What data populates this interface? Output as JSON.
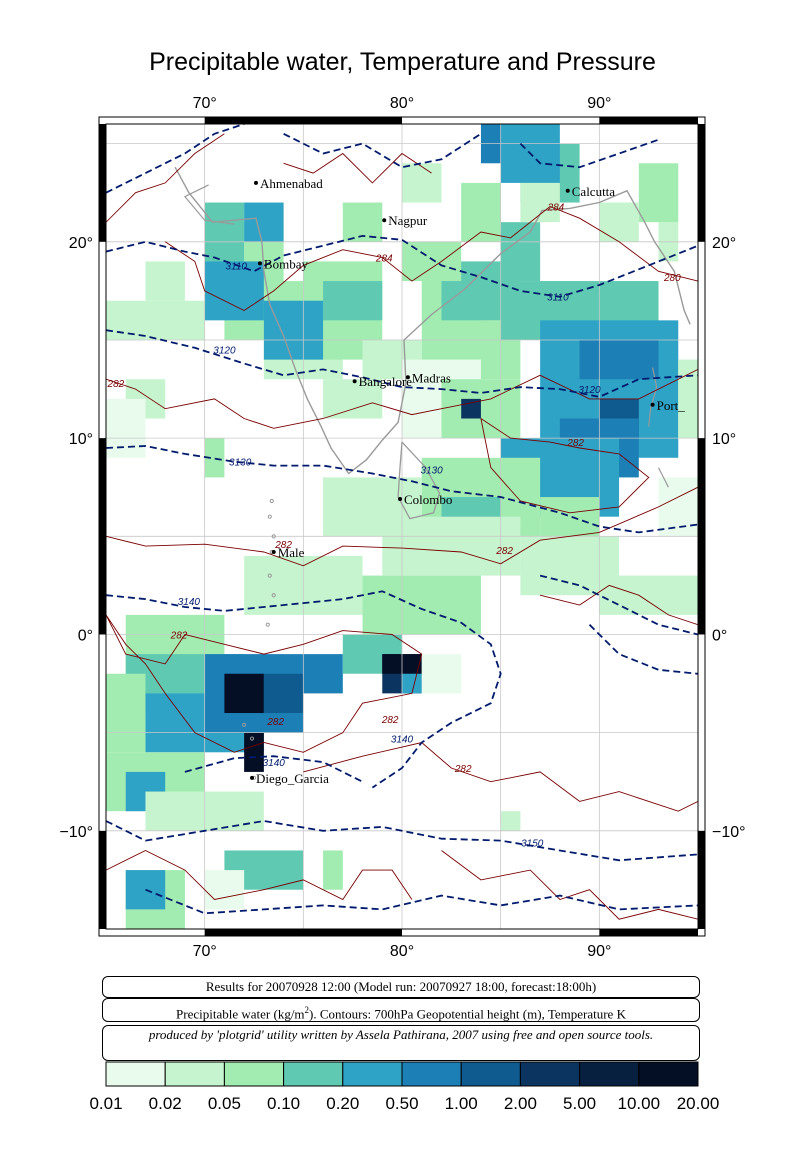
{
  "title": "Precipitable water, Temperature and Pressure",
  "map": {
    "lon_range": [
      65,
      95
    ],
    "lat_range": [
      -15,
      26
    ],
    "lon_ticks": [
      "70°",
      "80°",
      "90°"
    ],
    "lat_ticks": [
      "20°",
      "10°",
      "0°",
      "−10°"
    ],
    "grid": true,
    "colors": {
      "cell_1": "#e9fbec",
      "cell_2": "#c6f4ce",
      "cell_3": "#a3ecb1",
      "cell_4": "#5fc9b2",
      "cell_5": "#2fa3c6",
      "cell_6": "#1c7fb6",
      "cell_7": "#0f5a8e",
      "cell_8": "#0b3560",
      "cell_9": "#07203f",
      "cell_10": "#040e24",
      "pressure_contour": "#001a6e",
      "temperature_contour": "#7a0000",
      "coastline": "#9a9a9a"
    }
  },
  "cities": [
    {
      "name": "Ahmenabad",
      "lon": 72.6,
      "lat": 23.0
    },
    {
      "name": "Nagpur",
      "lon": 79.1,
      "lat": 21.1
    },
    {
      "name": "Calcutta",
      "lon": 88.4,
      "lat": 22.6
    },
    {
      "name": "Bombay",
      "lon": 72.8,
      "lat": 18.9
    },
    {
      "name": "Bangalore",
      "lon": 77.6,
      "lat": 12.9
    },
    {
      "name": "Madras",
      "lon": 80.3,
      "lat": 13.1
    },
    {
      "name": "Port_Blair",
      "label": "Port_",
      "lon": 92.7,
      "lat": 11.7
    },
    {
      "name": "Colombo",
      "lon": 79.9,
      "lat": 6.9
    },
    {
      "name": "Male",
      "lon": 73.5,
      "lat": 4.2
    },
    {
      "name": "Diego_Garcia",
      "lon": 72.4,
      "lat": -7.3
    }
  ],
  "contour_labels": [
    {
      "text": "3110",
      "lon": 71.6,
      "lat": 18.6,
      "kind": "pressure"
    },
    {
      "text": "3120",
      "lon": 71.0,
      "lat": 14.3,
      "kind": "pressure"
    },
    {
      "text": "3130",
      "lon": 71.8,
      "lat": 8.6,
      "kind": "pressure"
    },
    {
      "text": "3140",
      "lon": 69.2,
      "lat": 1.5,
      "kind": "pressure"
    },
    {
      "text": "3140",
      "lon": 73.5,
      "lat": -6.7,
      "kind": "pressure"
    },
    {
      "text": "3140",
      "lon": 80.0,
      "lat": -5.5,
      "kind": "pressure"
    },
    {
      "text": "3150",
      "lon": 86.6,
      "lat": -10.8,
      "kind": "pressure"
    },
    {
      "text": "3110",
      "lon": 87.9,
      "lat": 17.0,
      "kind": "pressure"
    },
    {
      "text": "3120",
      "lon": 89.5,
      "lat": 12.3,
      "kind": "pressure"
    },
    {
      "text": "3130",
      "lon": 81.5,
      "lat": 8.2,
      "kind": "pressure"
    },
    {
      "text": "284",
      "lon": 79.1,
      "lat": 19.0,
      "kind": "temperature"
    },
    {
      "text": "284",
      "lon": 87.8,
      "lat": 21.6,
      "kind": "temperature"
    },
    {
      "text": "280",
      "lon": 93.7,
      "lat": 18.0,
      "kind": "temperature"
    },
    {
      "text": "282",
      "lon": 65.5,
      "lat": 12.6,
      "kind": "temperature"
    },
    {
      "text": "282",
      "lon": 88.8,
      "lat": 9.6,
      "kind": "temperature"
    },
    {
      "text": "282",
      "lon": 85.2,
      "lat": 4.1,
      "kind": "temperature"
    },
    {
      "text": "282",
      "lon": 68.7,
      "lat": -0.2,
      "kind": "temperature"
    },
    {
      "text": "282",
      "lon": 74.0,
      "lat": 4.4,
      "kind": "temperature"
    },
    {
      "text": "282",
      "lon": 73.6,
      "lat": -4.6,
      "kind": "temperature"
    },
    {
      "text": "282",
      "lon": 79.4,
      "lat": -4.5,
      "kind": "temperature"
    },
    {
      "text": "282",
      "lon": 83.1,
      "lat": -7.0,
      "kind": "temperature"
    }
  ],
  "info": {
    "results": "Results for 20070928 12:00 (Model run: 20070927 18:00, forecast:18:00h)",
    "description_prefix": "Precipitable water (kg/m",
    "description_sup": "2",
    "description_suffix": ").  Contours: 700hPa Geopotential height (m), Temperature K",
    "credit": "produced by 'plotgrid' utility written by Assela Pathirana, 2007 using free and open source tools."
  },
  "legend": {
    "ticks": [
      "0.01",
      "0.02",
      "0.05",
      "0.10",
      "0.20",
      "0.50",
      "1.00",
      "2.00",
      "5.00",
      "10.00",
      "20.00"
    ],
    "colors": [
      "#e9fbec",
      "#c6f4ce",
      "#a3ecb1",
      "#5fc9b2",
      "#2fa3c6",
      "#1c7fb6",
      "#0f5a8e",
      "#0b3560",
      "#07203f",
      "#040e24"
    ]
  }
}
